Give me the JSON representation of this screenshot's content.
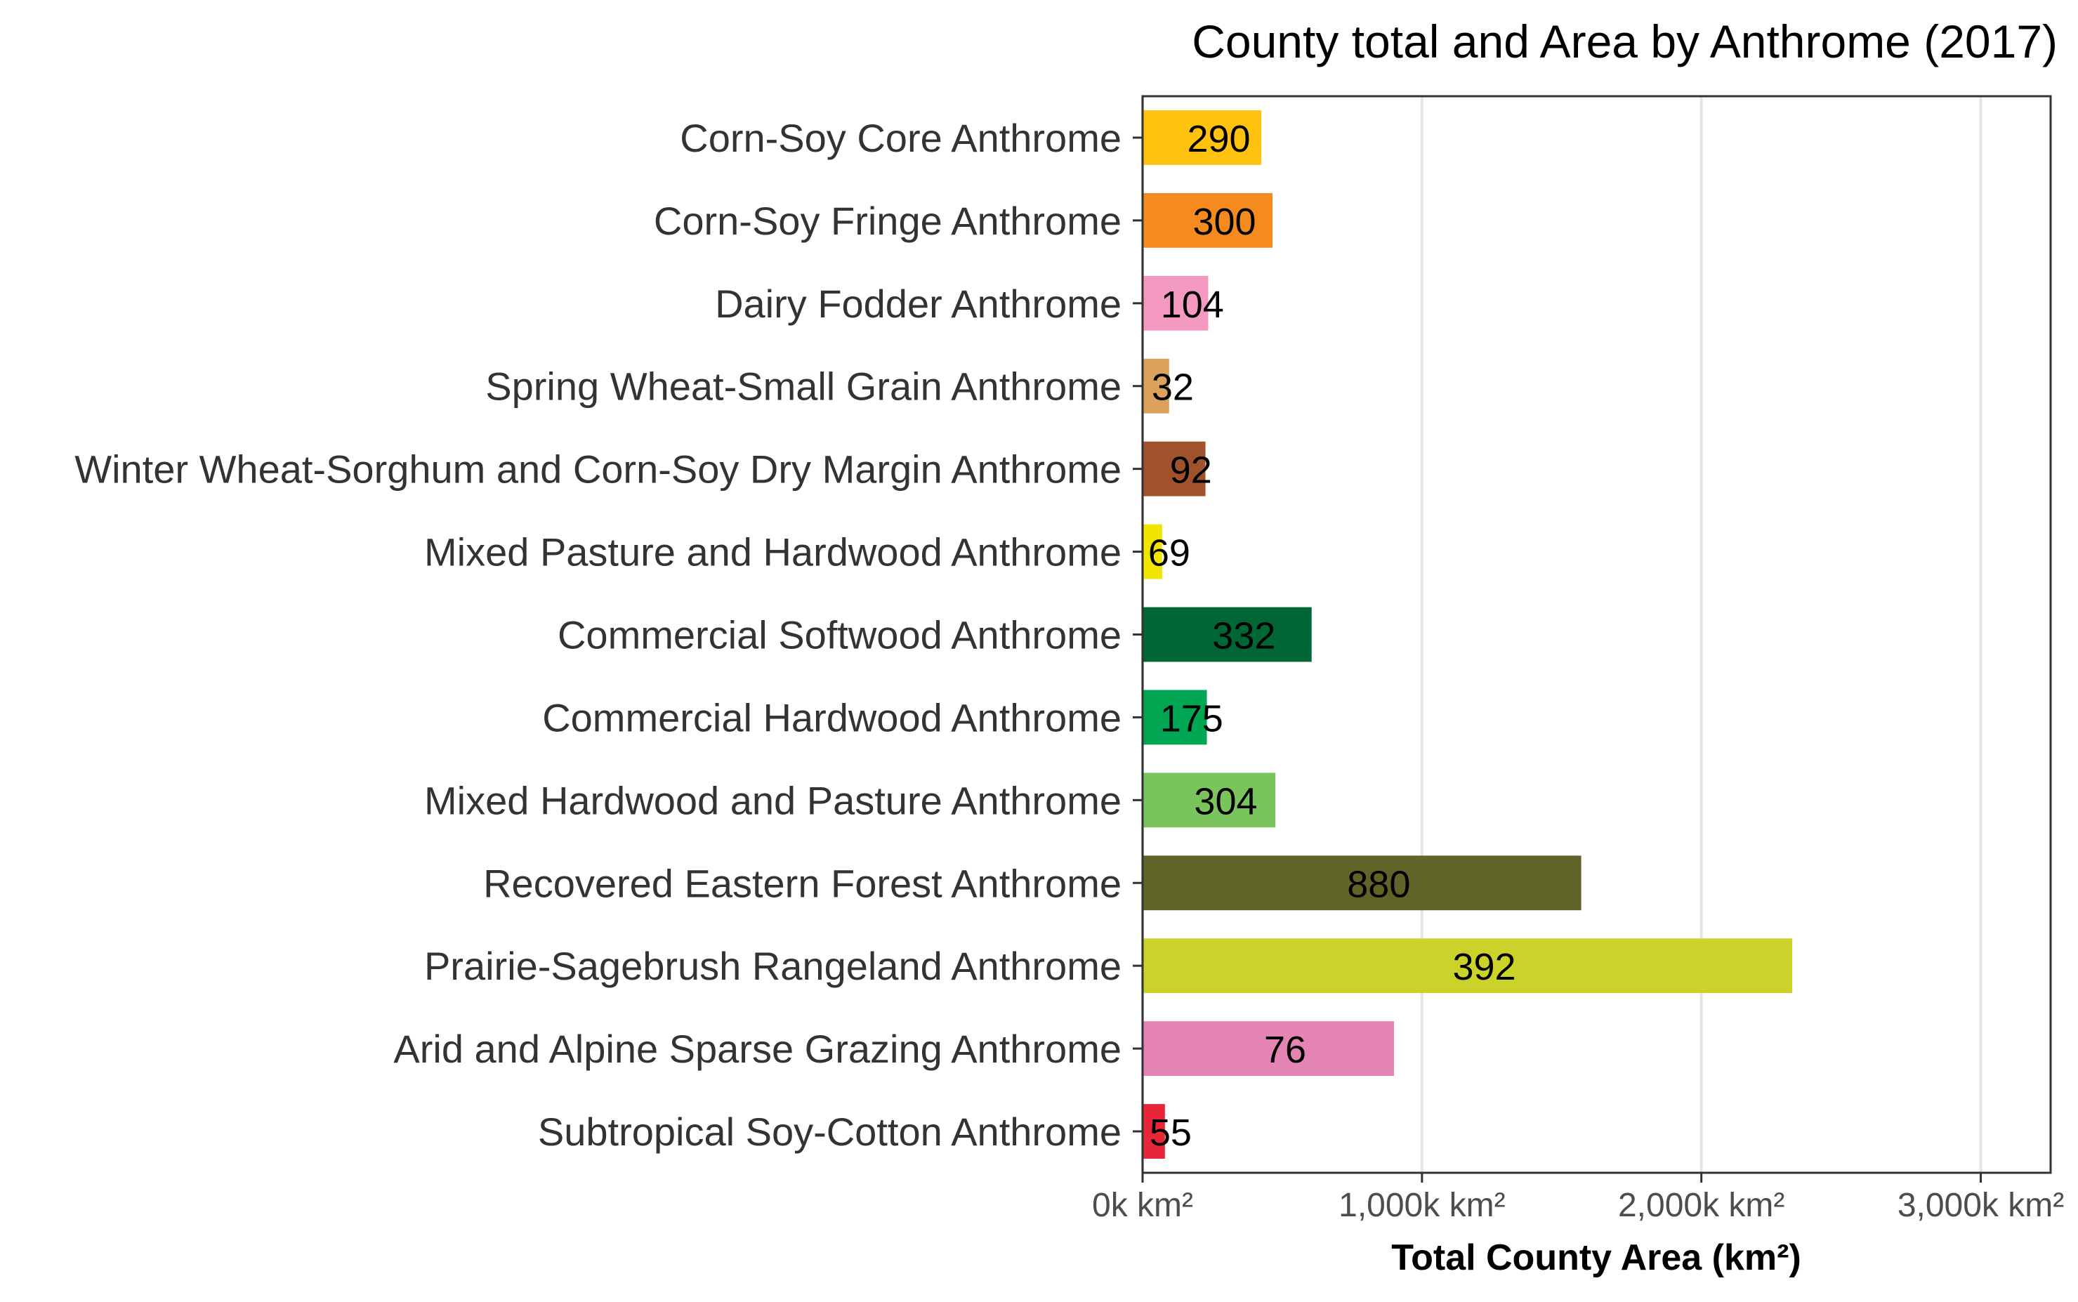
{
  "chart_data": {
    "type": "bar",
    "orientation": "horizontal",
    "title": "County total and Area by Anthrome (2017)",
    "xlabel": "Total County Area (km²)",
    "ylabel": "",
    "xlim": [
      0,
      3250
    ],
    "xticks": [
      0,
      1000,
      2000,
      3000
    ],
    "xtick_labels": [
      "0k km²",
      "1,000k km²",
      "2,000k km²",
      "3,000k km²"
    ],
    "grid": "vertical major gridlines",
    "legend": "none",
    "categories": [
      "Corn-Soy Core Anthrome",
      "Corn-Soy Fringe Anthrome",
      "Dairy Fodder Anthrome",
      "Spring Wheat-Small Grain Anthrome",
      "Winter Wheat-Sorghum and Corn-Soy Dry Margin Anthrome",
      "Mixed Pasture and Hardwood Anthrome",
      "Commercial Softwood Anthrome",
      "Commercial Hardwood Anthrome",
      "Mixed Hardwood and Pasture Anthrome",
      "Recovered Eastern Forest Anthrome",
      "Prairie-Sagebrush Rangeland Anthrome",
      "Arid and Alpine Sparse Grazing Anthrome",
      "Subtropical Soy-Cotton Anthrome"
    ],
    "values": [
      425,
      465,
      235,
      95,
      225,
      70,
      605,
      230,
      475,
      1570,
      2325,
      900,
      80
    ],
    "data_labels": [
      "290",
      "300",
      "104",
      "32",
      "92",
      "69",
      "332",
      "175",
      "304",
      "880",
      "392",
      "76",
      "55"
    ],
    "colors": [
      "#FFC20E",
      "#F58A1F",
      "#F49AC1",
      "#DDA15E",
      "#A0522D",
      "#F2E600",
      "#006633",
      "#00A651",
      "#7AC45D",
      "#606428",
      "#CBD32B",
      "#E384B4",
      "#E8263A"
    ]
  }
}
